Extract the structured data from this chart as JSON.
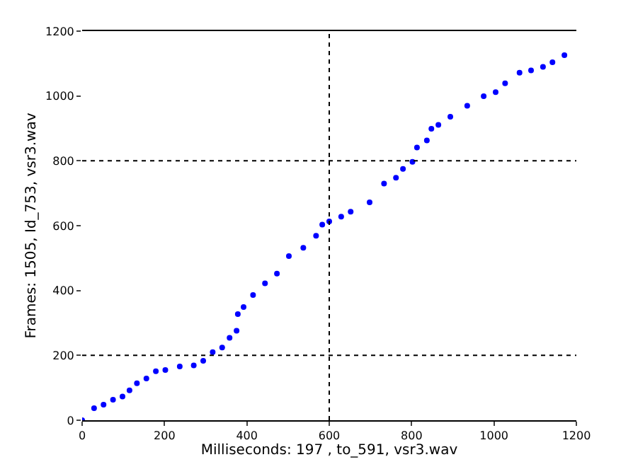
{
  "chart_data": {
    "type": "scatter",
    "xlabel": "Milliseconds: 197 , to_591, vsr3.wav",
    "ylabel": "Frames: 1505, Id_753, vsr3.wav",
    "x": [
      0,
      29,
      52,
      75,
      98,
      115,
      133,
      156,
      179,
      202,
      237,
      271,
      294,
      317,
      340,
      358,
      375,
      378,
      392,
      415,
      444,
      473,
      502,
      537,
      568,
      583,
      600,
      629,
      652,
      698,
      733,
      762,
      779,
      802,
      813,
      837,
      848,
      865,
      894,
      935,
      975,
      1004,
      1027,
      1062,
      1090,
      1119,
      1142,
      1171
    ],
    "series": [
      {
        "color": "#0000ff",
        "values": [
          0,
          37,
          48,
          63,
          73,
          92,
          114,
          129,
          151,
          155,
          166,
          169,
          183,
          210,
          224,
          254,
          276,
          327,
          349,
          386,
          422,
          452,
          506,
          532,
          569,
          603,
          613,
          628,
          643,
          672,
          730,
          748,
          775,
          797,
          841,
          863,
          899,
          911,
          936,
          970,
          999,
          1012,
          1039,
          1072,
          1079,
          1090,
          1104,
          1126
        ]
      }
    ],
    "xlim": [
      0,
      1200
    ],
    "ylim": [
      0,
      1200
    ],
    "xticks": [
      0,
      200,
      400,
      600,
      800,
      1000,
      1200
    ],
    "yticks": [
      0,
      200,
      400,
      600,
      800,
      1000,
      1200
    ],
    "marker": "circle",
    "ref_lines": [
      {
        "axis": "y",
        "value": 200,
        "color": "#000000",
        "line_style": "dotted"
      },
      {
        "axis": "y",
        "value": 800,
        "color": "#000000",
        "line_style": "dotted"
      },
      {
        "axis": "x",
        "value": 600,
        "color": "#000000",
        "line_style": "dotted"
      }
    ]
  }
}
